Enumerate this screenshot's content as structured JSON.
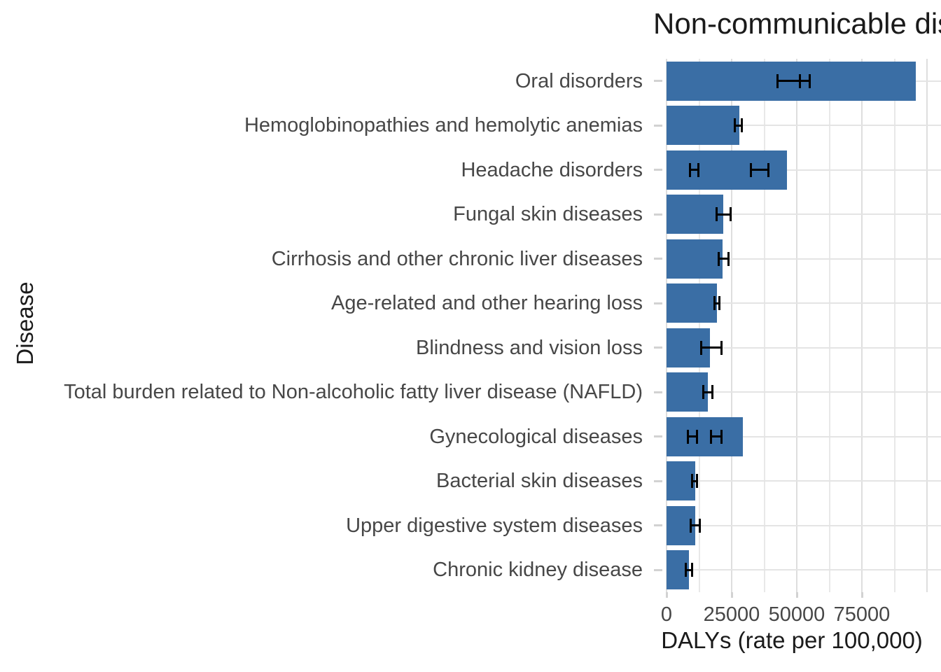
{
  "title": "Non-communicable diseases",
  "colors": {
    "bar": "#3A6EA5",
    "error_bar": "#000000",
    "grid_major": "#DEDEDE",
    "grid_minor": "#E8E8E8",
    "tick": "#D2D2D2",
    "axis_text": "#474747",
    "axis_title": "#1A1A1A",
    "background": "#FFFFFF"
  },
  "chart_data": {
    "type": "bar",
    "orientation": "horizontal",
    "title": "Non-communicable diseases",
    "xlabel": "DALYs (rate per 100,000)",
    "ylabel": "Disease",
    "xlim": [
      0,
      105000
    ],
    "x_tick_values": [
      0,
      25000,
      50000,
      75000
    ],
    "x_tick_labels": [
      "0",
      "25000",
      "50000",
      "75000"
    ],
    "x_minor_grid_step": 12500,
    "grid": "vertical major+minor lines, horizontal line at each category center",
    "legend": "none",
    "categories": [
      "Oral disorders",
      "Hemoglobinopathies and hemolytic anemias",
      "Headache disorders",
      "Fungal skin diseases",
      "Cirrhosis and other chronic liver diseases",
      "Age-related and other hearing loss",
      "Blindness and vision loss",
      "Total burden related to Non-alcoholic fatty liver disease (NAFLD)",
      "Gynecological diseases",
      "Bacterial skin diseases",
      "Upper digestive system diseases",
      "Chronic kidney disease"
    ],
    "values": [
      95700,
      27900,
      46200,
      21700,
      21500,
      19400,
      16700,
      15900,
      29200,
      11000,
      11000,
      8600
    ],
    "error_bars": [
      [
        [
          42500,
          51300
        ],
        [
          51300,
          55100
        ]
      ],
      [
        [
          26300,
          29000
        ]
      ],
      [
        [
          9000,
          12100
        ],
        [
          32500,
          39000
        ]
      ],
      [
        [
          19100,
          24500
        ]
      ],
      [
        [
          19900,
          23700
        ]
      ],
      [
        [
          18300,
          20400
        ]
      ],
      [
        [
          13400,
          21000
        ]
      ],
      [
        [
          14200,
          17500
        ]
      ],
      [
        [
          8100,
          11800
        ],
        [
          17200,
          21200
        ]
      ],
      [
        [
          9900,
          11800
        ]
      ],
      [
        [
          9400,
          12900
        ]
      ],
      [
        [
          7500,
          9700
        ]
      ]
    ]
  }
}
